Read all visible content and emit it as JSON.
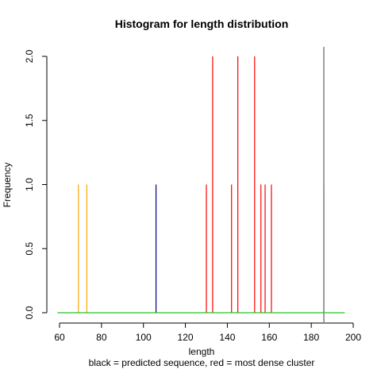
{
  "chart_data": {
    "type": "bar",
    "title": "Histogram for length distribution",
    "xlabel": "length",
    "ylabel": "Frequency",
    "subtitle": "black = predicted sequence, red = most dense cluster",
    "xlim": [
      60,
      200
    ],
    "ylim": [
      0,
      2
    ],
    "x_ticks": [
      60,
      80,
      100,
      120,
      140,
      160,
      180,
      200
    ],
    "y_ticks": [
      0.0,
      0.5,
      1.0,
      1.5,
      2.0
    ],
    "y_tick_labels": [
      "0.0",
      "0.5",
      "1.0",
      "1.5",
      "2.0"
    ],
    "baseline": {
      "from": 59,
      "to": 196,
      "color": "#22c422"
    },
    "marker": {
      "x": 186,
      "color": "#888888"
    },
    "series": [
      {
        "color": "#ffa500",
        "points": [
          {
            "x": 69,
            "y": 1
          },
          {
            "x": 73,
            "y": 1
          }
        ]
      },
      {
        "color": "#000080",
        "points": [
          {
            "x": 106,
            "y": 1
          }
        ]
      },
      {
        "color": "#ff0000",
        "points": [
          {
            "x": 130,
            "y": 1
          },
          {
            "x": 133,
            "y": 2
          },
          {
            "x": 142,
            "y": 1
          },
          {
            "x": 145,
            "y": 2
          },
          {
            "x": 153,
            "y": 2
          },
          {
            "x": 156,
            "y": 1
          },
          {
            "x": 158,
            "y": 1
          },
          {
            "x": 161,
            "y": 1
          }
        ]
      },
      {
        "color": "#00b000",
        "points": [
          {
            "x": 186,
            "y": 1
          }
        ]
      }
    ]
  }
}
